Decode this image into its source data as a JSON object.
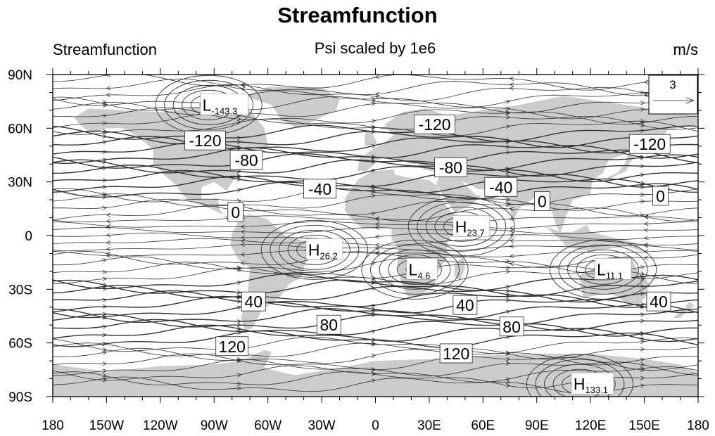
{
  "title": "Streamfunction",
  "left_string": "Streamfunction",
  "center_string": "Psi scaled by 1e6",
  "right_string": "m/s",
  "ref_vector": "3",
  "map": {
    "projection": "cylindrical-equidistant",
    "lon_range": [
      -180,
      180
    ],
    "lat_range": [
      -90,
      90
    ],
    "land_color": "#cccccc",
    "ocean_color": "#ffffff",
    "line_color": "#333333"
  },
  "lon_labels": [
    "180",
    "150W",
    "120W",
    "90W",
    "60W",
    "30W",
    "0",
    "30E",
    "60E",
    "90E",
    "120E",
    "150E",
    "180"
  ],
  "lat_labels": [
    "90N",
    "60N",
    "30N",
    "0",
    "30S",
    "60S",
    "90S"
  ],
  "contour_labels": [
    {
      "text": "-120",
      "lon": -95,
      "lat": 53
    },
    {
      "text": "-80",
      "lon": -72,
      "lat": 42
    },
    {
      "text": "-40",
      "lon": -31,
      "lat": 26
    },
    {
      "text": "0",
      "lon": -78,
      "lat": 13
    },
    {
      "text": "-120",
      "lon": 33,
      "lat": 62
    },
    {
      "text": "-80",
      "lon": 42,
      "lat": 38
    },
    {
      "text": "-40",
      "lon": 70,
      "lat": 27
    },
    {
      "text": "0",
      "lon": 93,
      "lat": 19
    },
    {
      "text": "-120",
      "lon": 153,
      "lat": 51
    },
    {
      "text": "0",
      "lon": 159,
      "lat": 22
    },
    {
      "text": "40",
      "lon": -68,
      "lat": -37
    },
    {
      "text": "80",
      "lon": -26,
      "lat": -50
    },
    {
      "text": "120",
      "lon": -80,
      "lat": -62
    },
    {
      "text": "40",
      "lon": 50,
      "lat": -39
    },
    {
      "text": "80",
      "lon": 76,
      "lat": -51
    },
    {
      "text": "120",
      "lon": 45,
      "lat": -66
    },
    {
      "text": "40",
      "lon": 158,
      "lat": -37
    }
  ],
  "extrema": [
    {
      "type": "L",
      "value": "-143.3",
      "lon": -93,
      "lat": 73
    },
    {
      "type": "H",
      "value": "23.7",
      "lon": 48,
      "lat": 5
    },
    {
      "type": "H",
      "value": "26.2",
      "lon": -34,
      "lat": -8
    },
    {
      "type": "L",
      "value": "4.6",
      "lon": 22,
      "lat": -19
    },
    {
      "type": "L",
      "value": "11.1",
      "lon": 127,
      "lat": -19
    },
    {
      "type": "H",
      "value": "133.1",
      "lon": 114,
      "lat": -83
    }
  ]
}
